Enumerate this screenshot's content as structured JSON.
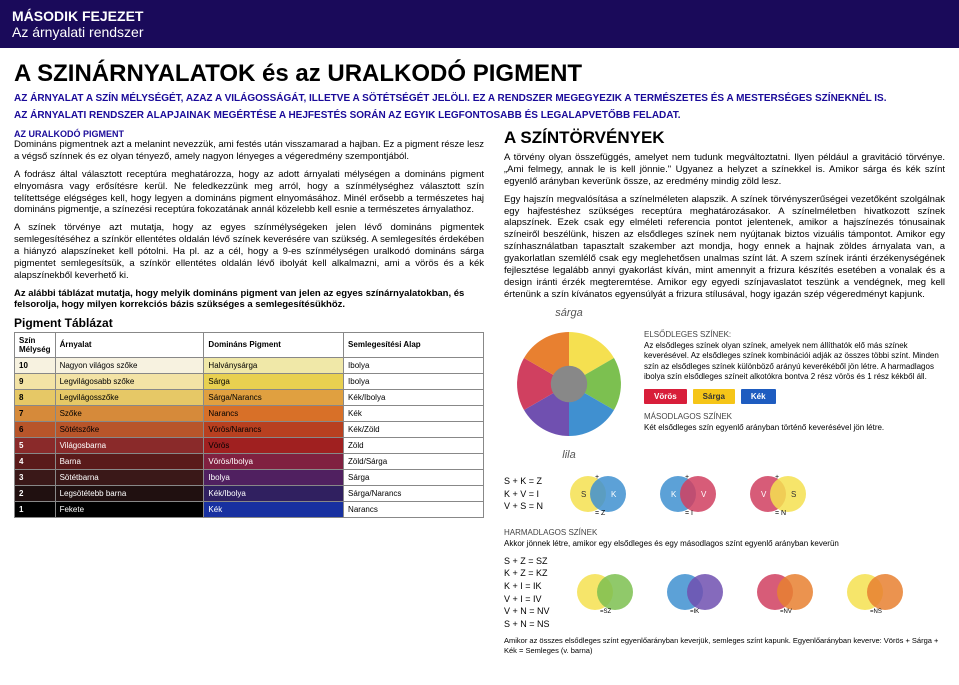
{
  "header": {
    "chapter": "MÁSODIK FEJEZET",
    "subtitle": "Az árnyalati rendszer"
  },
  "main": {
    "title": "A SZINÁRNYALATOK és az URALKODÓ PIGMENT",
    "subtitle1": "AZ ÁRNYALAT A SZÍN MÉLYSÉGÉT, AZAZ A VILÁGOSSÁGÁT, ILLETVE A SÖTÉTSÉGÉT JELÖLI. EZ A RENDSZER MEGEGYEZIK A TERMÉSZETES ÉS A MESTERSÉGES SZÍNEKNÉL IS.",
    "subtitle2": "AZ ÁRNYALATI RENDSZER ALAPJAINAK MEGÉRTÉSE A HEJFESTÉS SORÁN AZ EGYIK LEGFONTOSABB ÉS LEGALAPVETŐBB FELADAT."
  },
  "left": {
    "heading1": "AZ URALKODÓ PIGMENT",
    "p1": "Domináns pigmentnek azt a melanint nevezzük, ami festés után visszamarad a hajban. Ez a pigment része lesz a végső színnek és ez olyan tényező, amely nagyon lényeges a végeredmény szempontjából.",
    "p2": "A fodrász által választott receptúra meghatározza, hogy az adott árnyalati mélységen a domináns pigment elnyomásra vagy erősítésre kerül. Ne feledkezzünk meg arról, hogy a színmélységhez választott szín telítettsége elégséges kell, hogy legyen a domináns pigment elnyomásához. Minél erősebb a természetes haj domináns pigmentje, a színezési receptúra fokozatának annál közelebb kell esnie a természetes árnyalathoz.",
    "p3": "A színek törvénye azt mutatja, hogy az egyes színmélységeken jelen lévő domináns pigmentek semlegesítéséhez a színkör ellentétes oldalán lévő színek keverésére van szükség. A semlegesítés érdekében a hiányzó alapszíneket kell pótolni. Ha pl. az a cél, hogy a 9-es színmélységen uralkodó domináns sárga pigmentet semlegesítsük, a színkör ellentétes oldalán lévő ibolyát kell alkalmazni, ami a vörös és a kék alapszínekből keverhető ki.",
    "table_intro": "Az alábbi táblázat mutatja, hogy melyik domináns pigment van jelen az egyes színárnyalatokban, és felsorolja, hogy milyen korrekciós bázis szükséges a semlegesítésükhöz.",
    "table_title": "Pigment Táblázat",
    "table": {
      "headers": [
        "Szín Mélység",
        "Árnyalat",
        "Domináns Pigment",
        "Semlegesítési Alap"
      ],
      "rows": [
        {
          "lvl": "10",
          "shade": "Nagyon világos szőke",
          "pigment": "Halványsárga",
          "neutral": "Ibolya",
          "pclass": "p-halvany"
        },
        {
          "lvl": "9",
          "shade": "Legvilágosabb szőke",
          "pigment": "Sárga",
          "neutral": "Ibolya",
          "pclass": "p-sarga"
        },
        {
          "lvl": "8",
          "shade": "Legvilágosszőke",
          "pigment": "Sárga/Narancs",
          "neutral": "Kék/Ibolya",
          "pclass": "p-sargan"
        },
        {
          "lvl": "7",
          "shade": "Szőke",
          "pigment": "Narancs",
          "neutral": "Kék",
          "pclass": "p-narancs"
        },
        {
          "lvl": "6",
          "shade": "Sötétszőke",
          "pigment": "Vörös/Narancs",
          "neutral": "Kék/Zöld",
          "pclass": "p-vorosn"
        },
        {
          "lvl": "5",
          "shade": "Világosbarna",
          "pigment": "Vörös",
          "neutral": "Zöld",
          "pclass": "p-voros"
        },
        {
          "lvl": "4",
          "shade": "Barna",
          "pigment": "Vörös/Ibolya",
          "neutral": "Zöld/Sárga",
          "pclass": "p-vorosi"
        },
        {
          "lvl": "3",
          "shade": "Sötétbarna",
          "pigment": "Ibolya",
          "neutral": "Sárga",
          "pclass": "p-ibolya"
        },
        {
          "lvl": "2",
          "shade": "Legsötétebb barna",
          "pigment": "Kék/Ibolya",
          "neutral": "Sárga/Narancs",
          "pclass": "p-kekib"
        },
        {
          "lvl": "1",
          "shade": "Fekete",
          "pigment": "Kék",
          "neutral": "Narancs",
          "pclass": "p-kek"
        }
      ]
    }
  },
  "right": {
    "heading": "A SZÍNTÖRVÉNYEK",
    "p1": "A törvény olyan összefüggés, amelyet nem tudunk megváltoztatni. Ilyen például a gravitáció törvénye. „Ami felmegy, annak le is kell jönnie.\" Ugyanez a helyzet a színekkel is. Amikor sárga és kék színt egyenlő arányban keverünk össze, az eredmény mindig zöld lesz.",
    "p2": "Egy hajszín megvalósítása a színelméleten alapszik. A színek törvényszerűségei vezetőként szolgálnak egy hajfestéshez szükséges receptúra meghatározásakor. A színelméletben hivatkozott színek alapszínek. Ezek csak egy elméleti referencia pontot jelentenek, amikor a hajszínezés tónusainak színeiről beszélünk, hiszen az elsődleges színek nem nyújtanak biztos vizuális támpontot. Amikor egy színhasználatban tapasztalt szakember azt mondja, hogy ennek a hajnak zöldes árnyalata van, a gyakorlatlan szemlélő csak egy meglehetősen unalmas színt lát. A szem színek iránti érzékenységének fejlesztése legalább annyi gyakorlást kíván, mint amennyit a frizura készítés esetében a vonalak és a design iránti érzék megteremtése. Amikor egy egyedi színjavaslatot teszünk a vendégnek, meg kell értenünk a szín kívánatos egyensúlyát a frizura stílusával, hogy igazán szép végeredményt kapjunk.",
    "sarga_label": "sárga",
    "lila_label": "lila",
    "primary_heading": "ELSŐDLEGES SZÍNEK:",
    "primary_text": "Az elsődleges színek olyan színek, amelyek nem állíthatók elő más színek keverésével. Az elsődleges színek kombinációi adják az összes többi színt. Minden szín az elsődleges színek különböző arányú keverékéből jön létre. A harmadlagos ibolya szín elsődleges színeit alkotókra bontva 2 rész vörös és 1 rész kékből áll.",
    "primary_colors": [
      "Vörös",
      "Sárga",
      "Kék"
    ],
    "secondary_heading": "MÁSODLAGOS SZÍNEK",
    "secondary_text": "Két elsődleges szín egyenlő arányban történő keverésével jön létre.",
    "sec_formulas": [
      "S + K = Z",
      "K + V = I",
      "V + S = N"
    ],
    "tertiary_heading": "HARMADLAGOS SZÍNEK",
    "tertiary_text": "Akkor jönnek létre, amikor egy elsődleges és egy másodlagos színt egyenlő arányban keverün",
    "ter_formulas": [
      "S + Z = SZ",
      "K + Z = KZ",
      "K + I = IK",
      "V + I = IV",
      "V + N = NV",
      "S + N = NS"
    ],
    "footer_note": "Amikor az összes elsődleges színt egyenlőarányban keverjük, semleges színt kapunk. Egyenlőarányban keverve: Vörös + Sárga + Kék = Semleges (v. barna)"
  }
}
